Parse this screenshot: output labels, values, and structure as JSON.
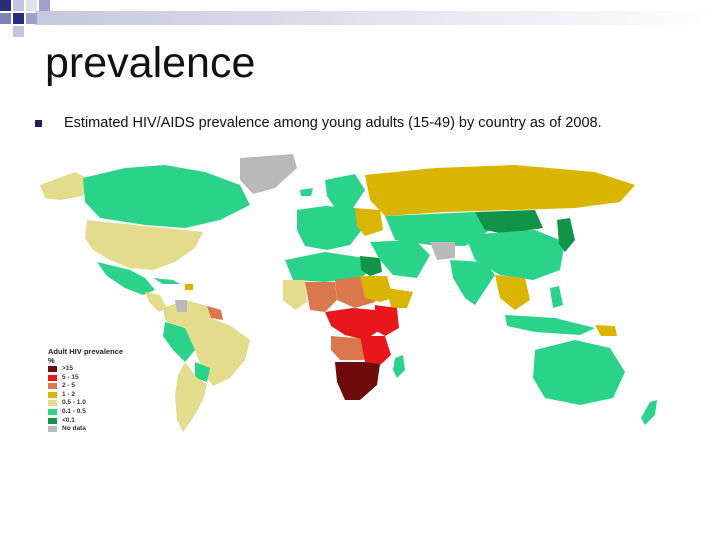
{
  "slide": {
    "title": "prevalence",
    "bullet_text": "Estimated HIV/AIDS prevalence among young adults (15-49) by country as of 2008."
  },
  "legend": {
    "title": "Adult HIV prevalence %",
    "items": [
      {
        "label": ">15",
        "color": "#6e0c0c"
      },
      {
        "label": "5 - 15",
        "color": "#e8171b"
      },
      {
        "label": "2 - 5",
        "color": "#d9784c"
      },
      {
        "label": "1 - 2",
        "color": "#d9b500"
      },
      {
        "label": "0.5 - 1.0",
        "color": "#e3dc8c"
      },
      {
        "label": "0.1 - 0.5",
        "color": "#2bd38a"
      },
      {
        "label": "<0.1",
        "color": "#129448"
      },
      {
        "label": "No data",
        "color": "#b9b9b9"
      }
    ]
  }
}
